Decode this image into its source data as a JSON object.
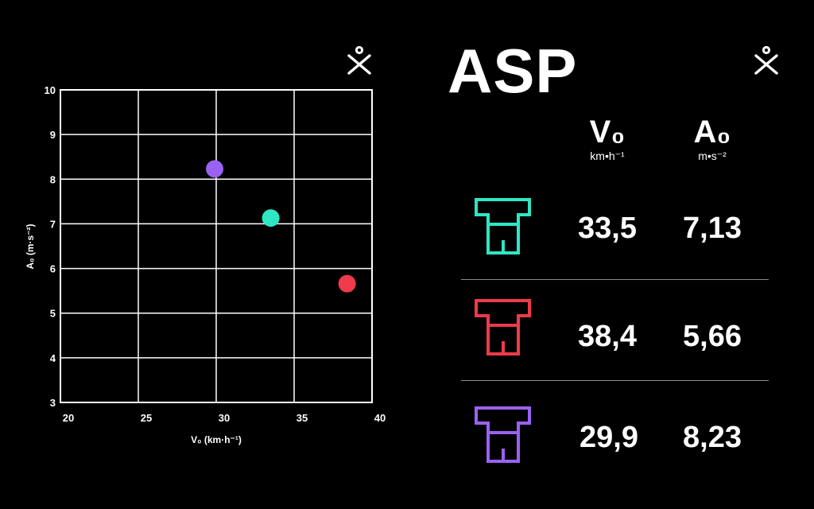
{
  "panel": {
    "title": "ASP",
    "columns": [
      {
        "symbol": "V₀",
        "unit": "km•h⁻¹"
      },
      {
        "symbol": "A₀",
        "unit": "m•s⁻²"
      }
    ],
    "rows": [
      {
        "color": "#2ee6c4",
        "icon": "jersey-icon",
        "v0": "33,5",
        "a0": "7,13"
      },
      {
        "color": "#ee3a4a",
        "icon": "jersey-icon",
        "v0": "38,4",
        "a0": "5,66"
      },
      {
        "color": "#9a62f2",
        "icon": "jersey-icon",
        "v0": "29,9",
        "a0": "8,23"
      }
    ]
  },
  "logo_icon": "stick-figure-logo-icon",
  "chart_data": {
    "type": "scatter",
    "xlabel": "V₀ (km·h⁻¹)",
    "ylabel": "A₀ (m·s⁻²)",
    "xlim": [
      20,
      40
    ],
    "ylim": [
      3,
      10
    ],
    "xticks": [
      20,
      25,
      30,
      35,
      40
    ],
    "yticks": [
      3,
      4,
      5,
      6,
      7,
      8,
      9,
      10
    ],
    "grid": true,
    "points": [
      {
        "x": 33.5,
        "y": 7.13,
        "color": "#2ee6c4"
      },
      {
        "x": 38.4,
        "y": 5.66,
        "color": "#ee3a4a"
      },
      {
        "x": 29.9,
        "y": 8.23,
        "color": "#9a62f2"
      }
    ]
  }
}
